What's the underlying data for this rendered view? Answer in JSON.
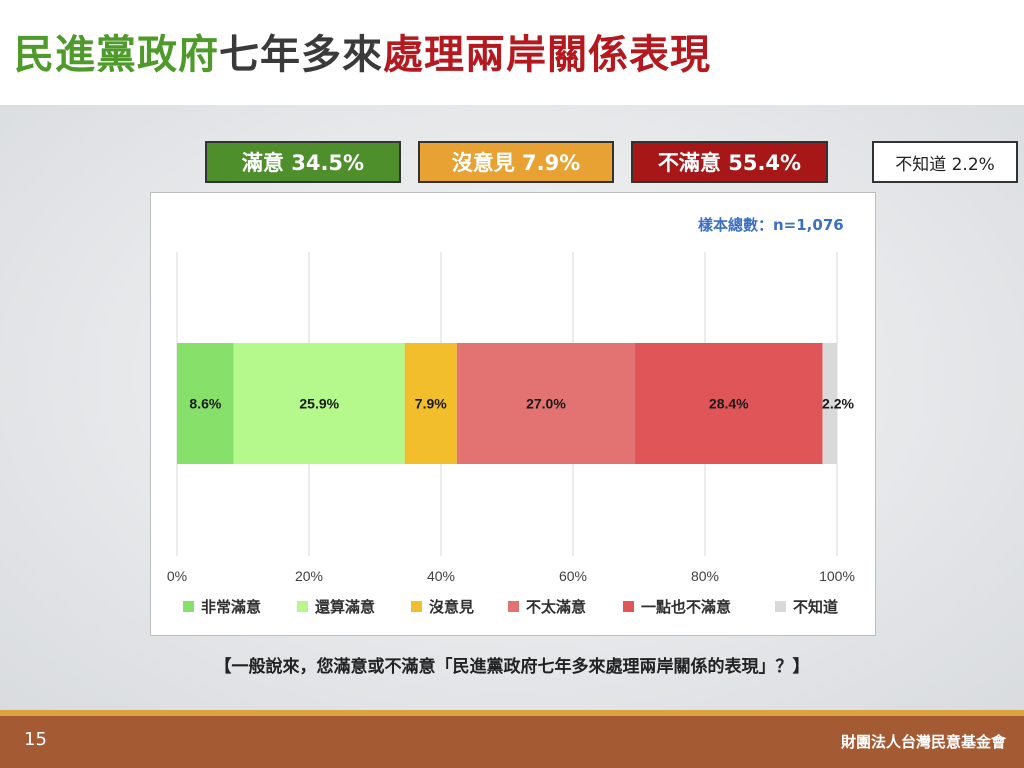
{
  "title": {
    "part1": "民進黨政府",
    "part2": "七年多來",
    "part3": "處理兩岸關係表現",
    "color1": "#4e9a2a",
    "color2": "#3a3a3a",
    "color3": "#b3191e"
  },
  "summary": [
    {
      "label": "滿意 34.5%",
      "bg": "#4e8f2c",
      "fg": "#ffffff"
    },
    {
      "label": "沒意見 7.9%",
      "bg": "#e8a133",
      "fg": "#ffffff"
    },
    {
      "label": "不滿意 55.4%",
      "bg": "#a81717",
      "fg": "#ffffff"
    },
    {
      "label": "不知道 2.2%",
      "bg": "#ffffff",
      "fg": "#222222"
    }
  ],
  "sample": "樣本總數：n=1,076",
  "chart_data": {
    "type": "bar",
    "orientation": "horizontal-stacked",
    "x_range": [
      0,
      100
    ],
    "x_ticks": [
      "0%",
      "20%",
      "40%",
      "60%",
      "80%",
      "100%"
    ],
    "grid": true,
    "legend_placement": "bottom",
    "series": [
      {
        "name": "非常滿意",
        "value": 8.6,
        "label": "8.6%",
        "color": "#86e06a"
      },
      {
        "name": "還算滿意",
        "value": 25.9,
        "label": "25.9%",
        "color": "#b5f98d"
      },
      {
        "name": "沒意見",
        "value": 7.9,
        "label": "7.9%",
        "color": "#f2be2c"
      },
      {
        "name": "不太滿意",
        "value": 27.0,
        "label": "27.0%",
        "color": "#e37272"
      },
      {
        "name": "一點也不滿意",
        "value": 28.4,
        "label": "28.4%",
        "color": "#e05557"
      },
      {
        "name": "不知道",
        "value": 2.2,
        "label": "2.2%",
        "color": "#d9d9d9"
      }
    ]
  },
  "question": "【一般說來，您滿意或不滿意「民進黨政府七年多來處理兩岸關係的表現」？】",
  "footer": {
    "page": "15",
    "org": "財團法人台灣民意基金會"
  }
}
